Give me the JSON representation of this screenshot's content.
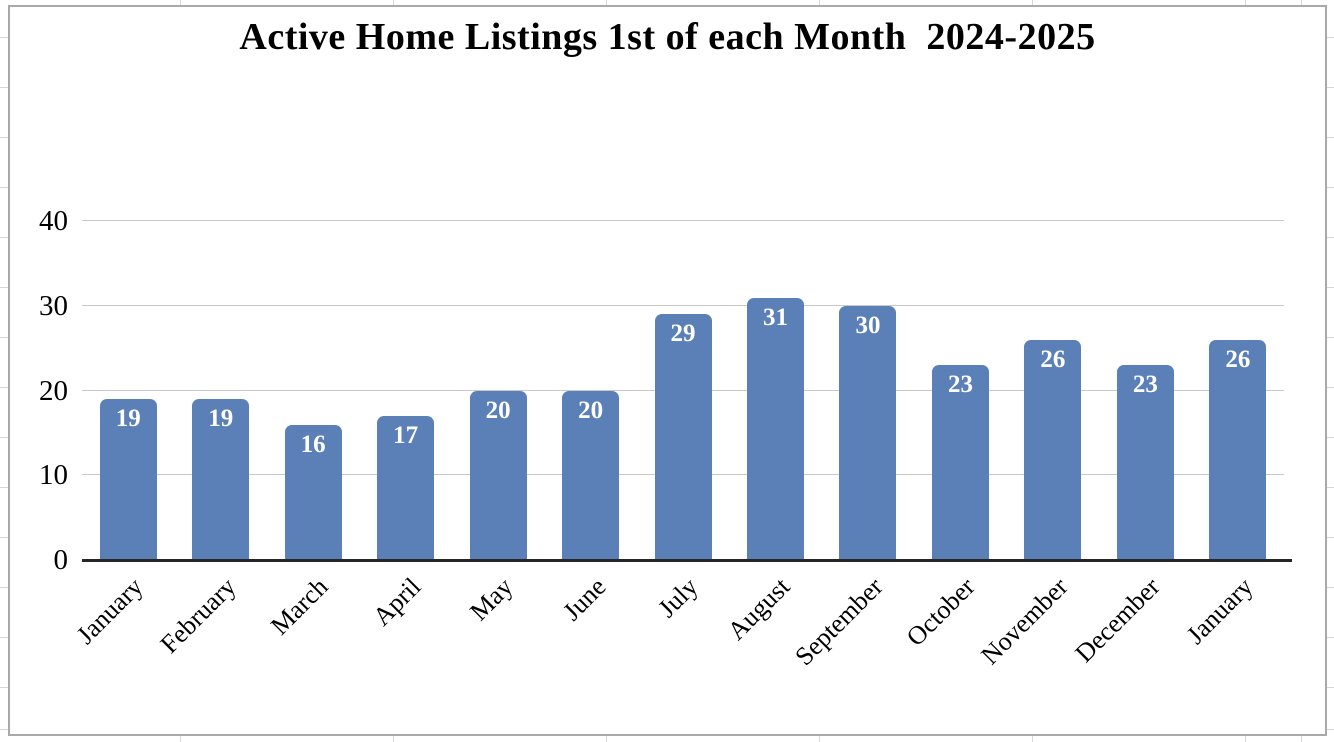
{
  "chart_data": {
    "type": "bar",
    "title": "Active Home Listings 1st of each Month  2024-2025",
    "categories": [
      "January",
      "February",
      "March",
      "April",
      "May",
      "June",
      "July",
      "August",
      "September",
      "October",
      "November",
      "December",
      "January"
    ],
    "values": [
      19,
      19,
      16,
      17,
      20,
      20,
      29,
      31,
      30,
      23,
      26,
      23,
      26
    ],
    "xlabel": "",
    "ylabel": "",
    "ylim": [
      0,
      45
    ],
    "yticks": [
      0,
      10,
      20,
      30,
      40
    ],
    "grid": "horizontal",
    "legend": "none",
    "bar_color": "#5b80b8",
    "bar_label_color": "#ffffff",
    "axis_line_color": "#262626",
    "gridline_color": "#c9c9c9"
  }
}
